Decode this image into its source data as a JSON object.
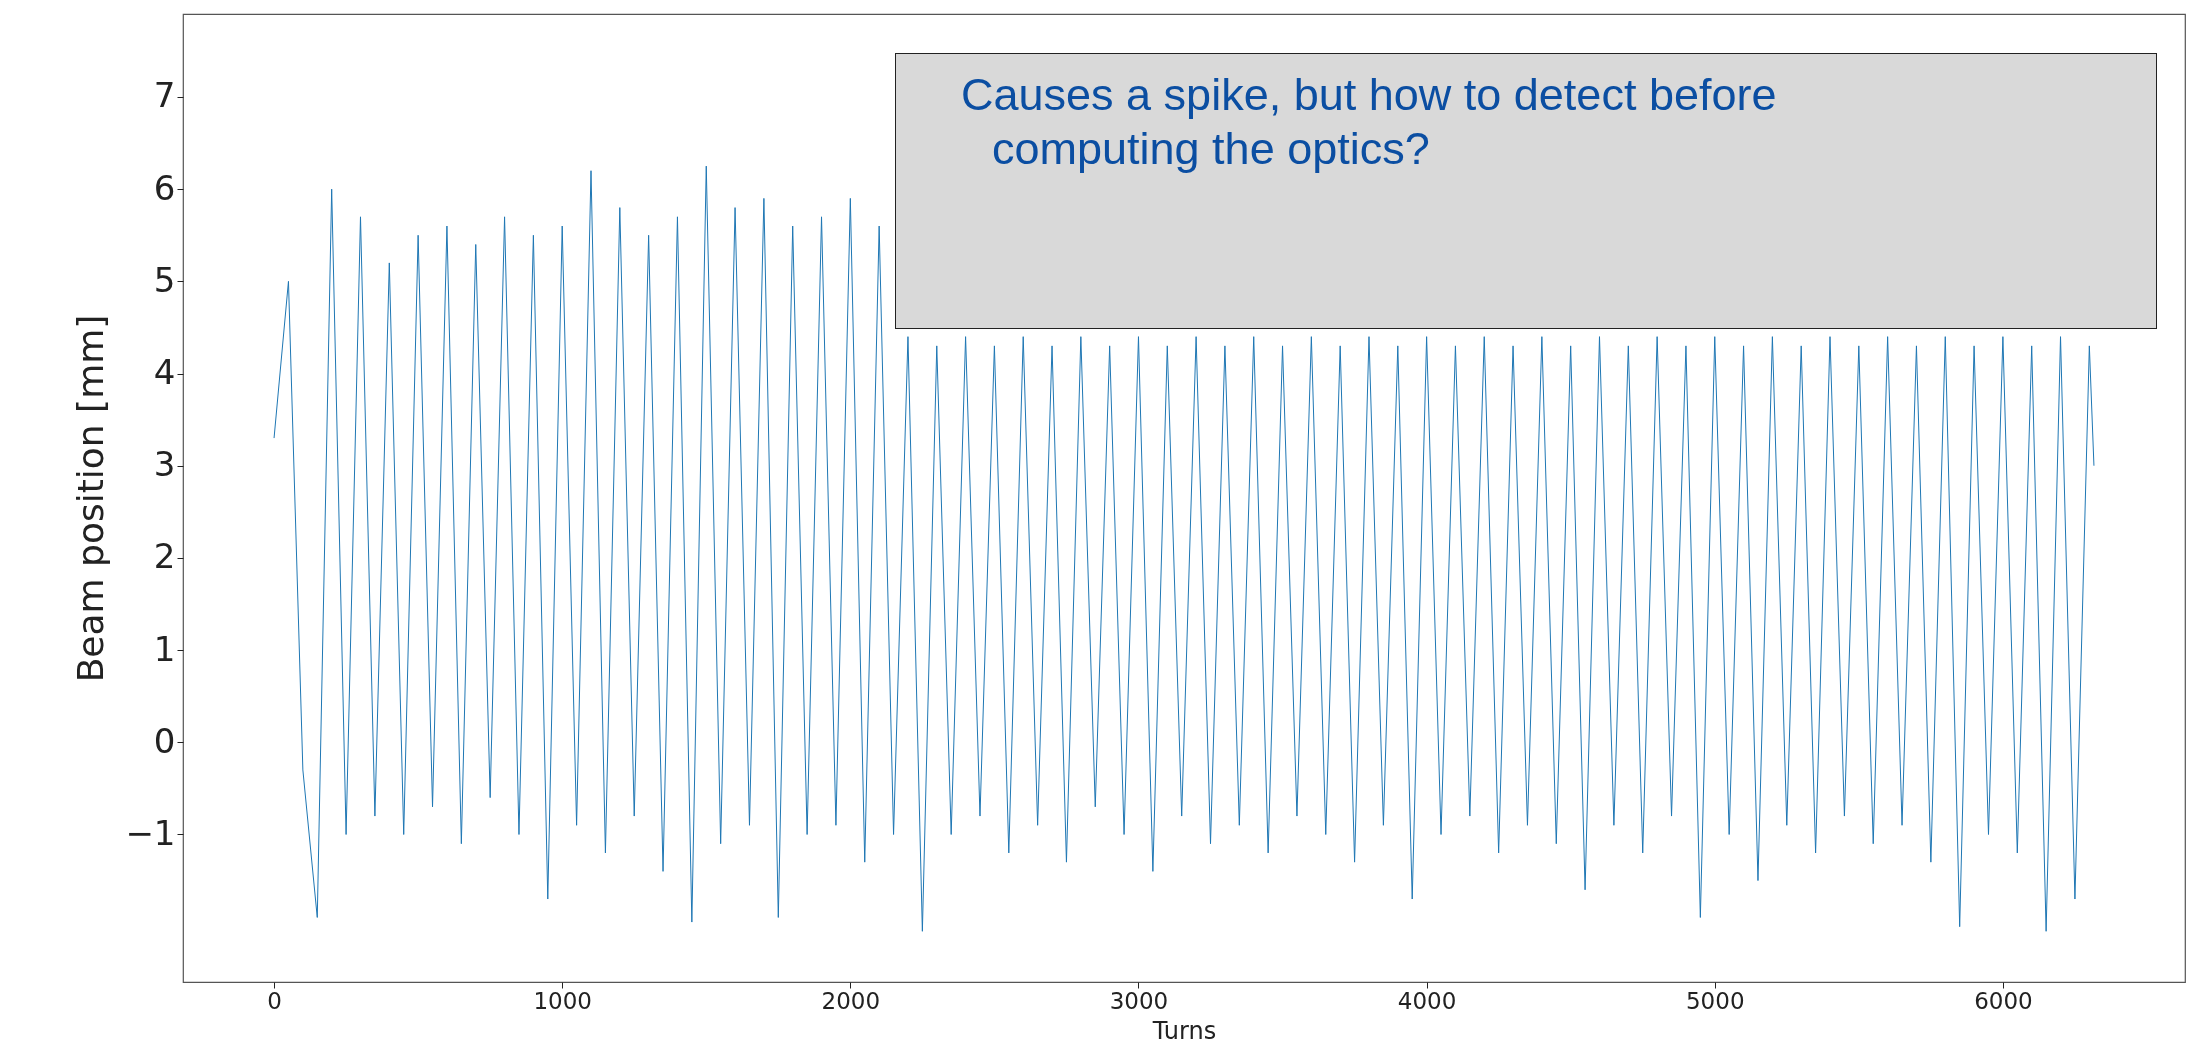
{
  "chart_data": {
    "type": "line",
    "xlabel": "Turns",
    "ylabel": "Beam position [mm]",
    "annotations": [
      "Causes a spike, but how to detect before computing the optics?"
    ],
    "x": [
      0,
      50,
      100,
      150,
      200,
      250,
      300,
      350,
      400,
      450,
      500,
      550,
      600,
      650,
      700,
      750,
      800,
      850,
      900,
      950,
      1000,
      1050,
      1100,
      1150,
      1200,
      1250,
      1300,
      1350,
      1400,
      1450,
      1500,
      1550,
      1600,
      1650,
      1700,
      1750,
      1800,
      1850,
      1900,
      1950,
      2000,
      2050,
      2100,
      2150,
      2200,
      2250,
      2300,
      2350,
      2400,
      2450,
      2500,
      2550,
      2600,
      2650,
      2700,
      2750,
      2800,
      2850,
      2900,
      2950,
      3000,
      3050,
      3100,
      3150,
      3200,
      3250,
      3300,
      3350,
      3400,
      3450,
      3500,
      3550,
      3600,
      3650,
      3700,
      3750,
      3800,
      3850,
      3900,
      3950,
      4000,
      4050,
      4100,
      4150,
      4200,
      4250,
      4300,
      4350,
      4400,
      4450,
      4500,
      4550,
      4600,
      4650,
      4700,
      4750,
      4800,
      4850,
      4900,
      4950,
      5000,
      5050,
      5100,
      5150,
      5200,
      5250,
      5300,
      5350,
      5400,
      5450,
      5500,
      5550,
      5600,
      5650,
      5700,
      5750,
      5800,
      5850,
      5900,
      5950,
      6000,
      6050,
      6100,
      6150,
      6200,
      6250,
      6300,
      6316
    ],
    "series": [
      {
        "color": "#1f77b4",
        "values": [
          3.3,
          5.0,
          -0.3,
          -1.9,
          6.0,
          -1.0,
          5.7,
          -0.8,
          5.2,
          -1.0,
          5.5,
          -0.7,
          5.6,
          -1.1,
          5.4,
          -0.6,
          5.7,
          -1.0,
          5.5,
          -1.7,
          5.6,
          -0.9,
          6.2,
          -1.2,
          5.8,
          -0.8,
          5.5,
          -1.4,
          5.7,
          -1.95,
          6.25,
          -1.1,
          5.8,
          -0.9,
          5.9,
          -1.9,
          5.6,
          -1.0,
          5.7,
          -0.9,
          5.9,
          -1.3,
          5.6,
          -1.0,
          4.4,
          -2.05,
          4.3,
          -1.0,
          4.4,
          -0.8,
          4.3,
          -1.2,
          4.4,
          -0.9,
          4.3,
          -1.3,
          4.4,
          -0.7,
          4.3,
          -1.0,
          4.4,
          -1.4,
          4.3,
          -0.8,
          4.4,
          -1.1,
          4.3,
          -0.9,
          4.4,
          -1.2,
          4.3,
          -0.8,
          4.4,
          -1.0,
          4.3,
          -1.3,
          4.4,
          -0.9,
          4.3,
          -1.7,
          4.4,
          -1.0,
          4.3,
          -0.8,
          4.4,
          -1.2,
          4.3,
          -0.9,
          4.4,
          -1.1,
          4.3,
          -1.6,
          4.4,
          -0.9,
          4.3,
          -1.2,
          4.4,
          -0.8,
          4.3,
          -1.9,
          4.4,
          -1.0,
          4.3,
          -1.5,
          4.4,
          -0.9,
          4.3,
          -1.2,
          4.4,
          -0.8,
          4.3,
          -1.1,
          4.4,
          -0.9,
          4.3,
          -1.3,
          4.4,
          -2.0,
          4.3,
          -1.0,
          4.4,
          -1.2,
          4.3,
          -2.05,
          4.4,
          -1.7,
          4.3,
          3.0
        ]
      }
    ],
    "xlim": [
      -316,
      6632
    ],
    "xticks": [
      0,
      1000,
      2000,
      3000,
      4000,
      5000,
      6000
    ],
    "ylim": [
      -2.6,
      7.9
    ],
    "yticks": [
      {
        "value": -1,
        "label": "−1"
      },
      0,
      1,
      2,
      3,
      4,
      5,
      6,
      7
    ],
    "grid": false,
    "legend": false,
    "line_style": "solid",
    "marker": "none"
  }
}
